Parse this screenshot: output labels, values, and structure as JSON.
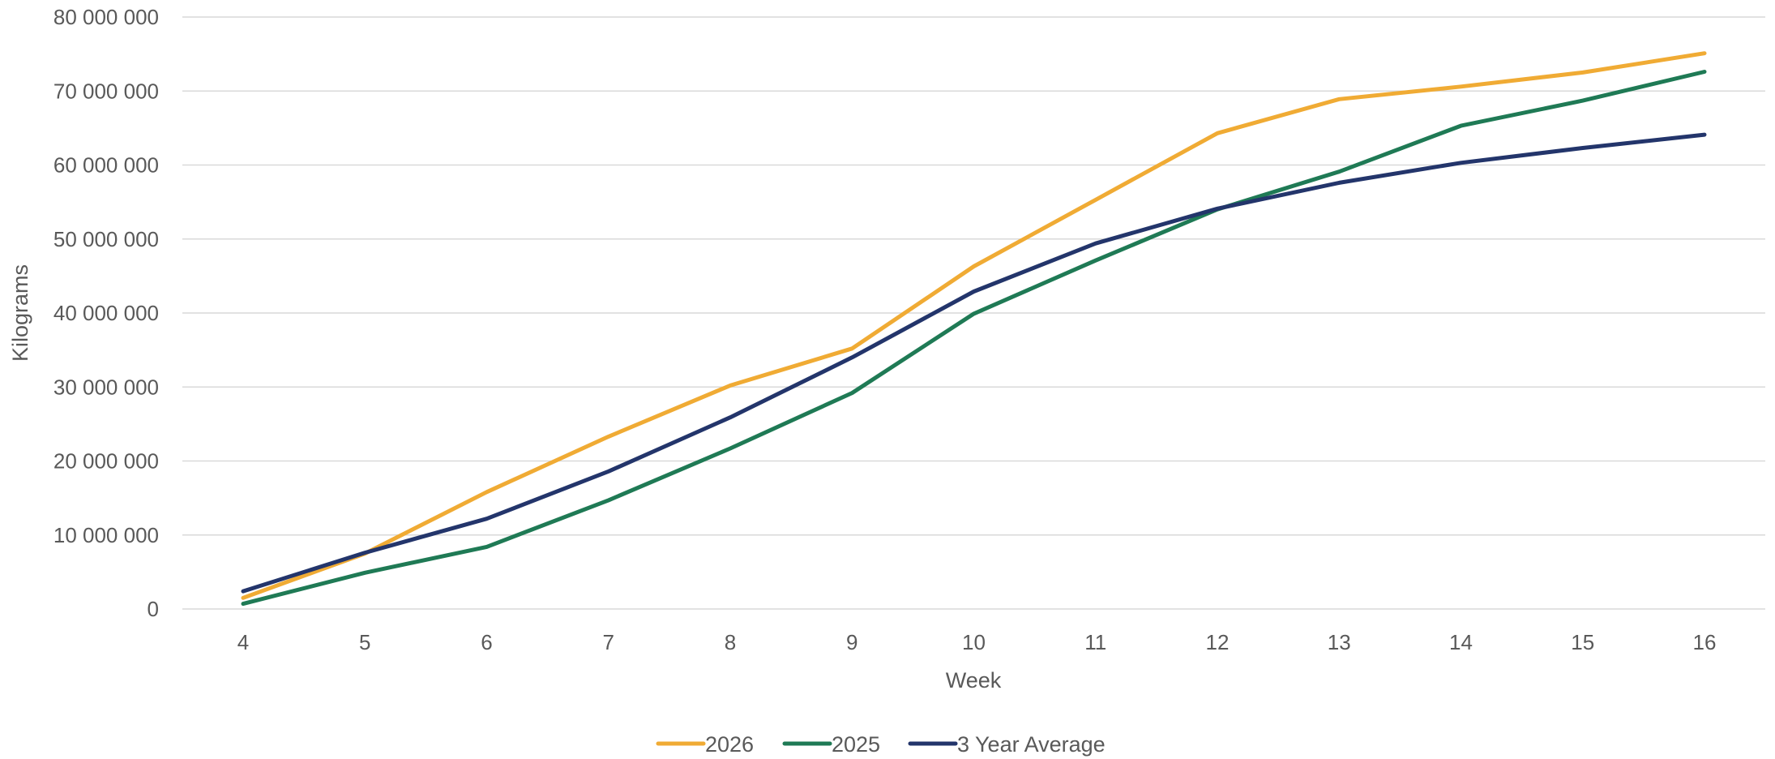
{
  "chart_data": {
    "type": "line",
    "title": "",
    "xlabel": "Week",
    "ylabel": "Kilograms",
    "x": [
      4,
      5,
      6,
      7,
      8,
      9,
      10,
      11,
      12,
      13,
      14,
      15,
      16
    ],
    "x_tick_labels": [
      "4",
      "5",
      "6",
      "7",
      "8",
      "9",
      "10",
      "11",
      "12",
      "13",
      "14",
      "15",
      "16"
    ],
    "ylim": [
      0,
      80000000
    ],
    "y_ticks": [
      0,
      10000000,
      20000000,
      30000000,
      40000000,
      50000000,
      60000000,
      70000000,
      80000000
    ],
    "y_tick_labels": [
      "0",
      "10 000 000",
      "20 000 000",
      "30 000 000",
      "40 000 000",
      "50 000 000",
      "60 000 000",
      "70 000 000",
      "80 000 000"
    ],
    "grid": true,
    "legend_position": "bottom",
    "series": [
      {
        "name": "2026",
        "color": "#f0ab34",
        "values": [
          1500000,
          7500000,
          15800000,
          23300000,
          30200000,
          35200000,
          46300000,
          55300000,
          64300000,
          68900000,
          70600000,
          72500000,
          75100000
        ]
      },
      {
        "name": "2025",
        "color": "#1f7a55",
        "values": [
          700000,
          4900000,
          8400000,
          14700000,
          21700000,
          29200000,
          39900000,
          47100000,
          54000000,
          59100000,
          65300000,
          68700000,
          72600000
        ]
      },
      {
        "name": "3 Year Average",
        "color": "#23356b",
        "values": [
          2400000,
          7600000,
          12200000,
          18600000,
          25900000,
          34000000,
          42900000,
          49400000,
          54100000,
          57600000,
          60300000,
          62300000,
          64100000
        ]
      }
    ]
  }
}
